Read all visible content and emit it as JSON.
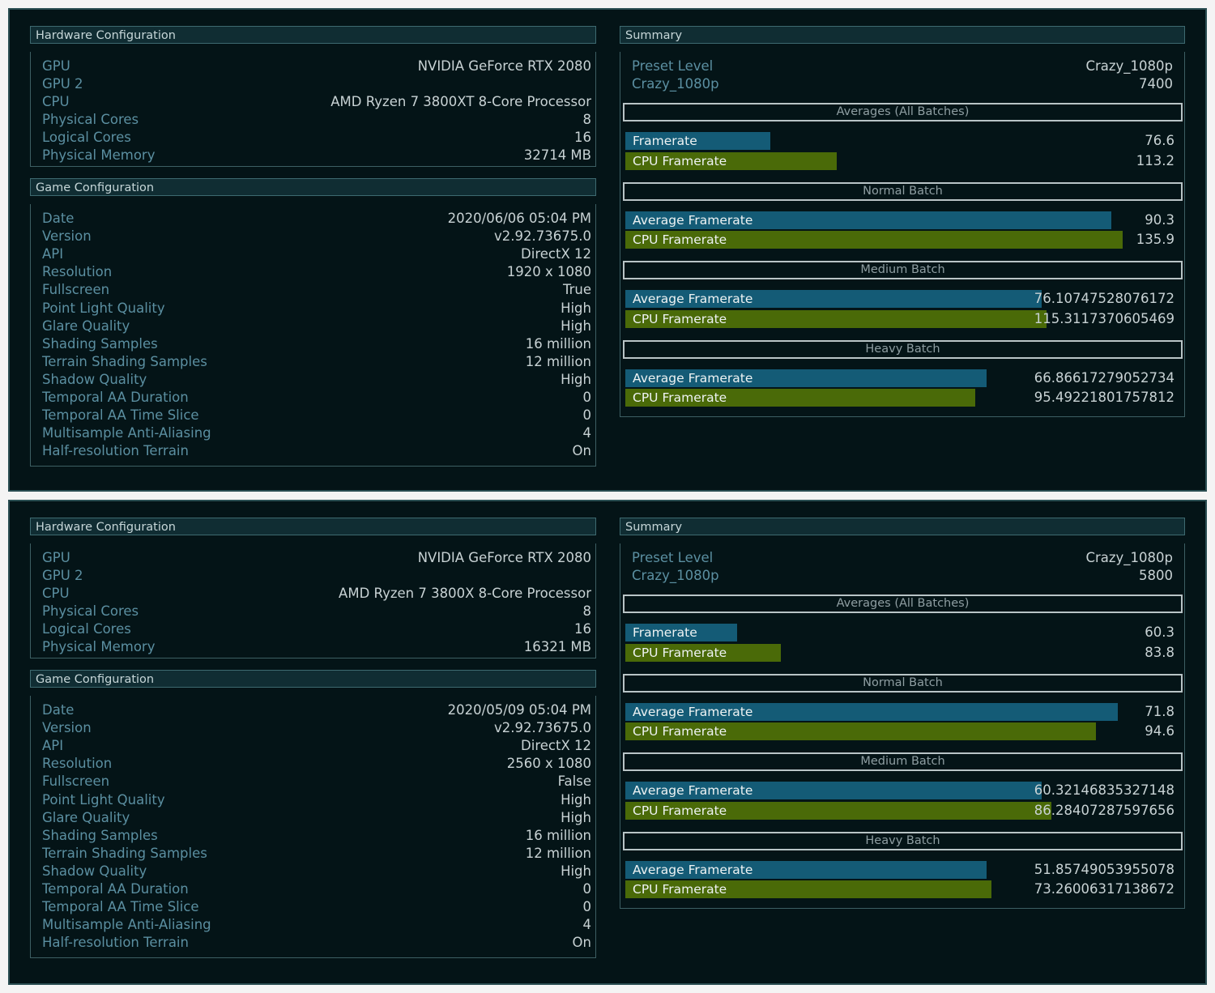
{
  "panels": [
    {
      "hardware": {
        "title": "Hardware Configuration",
        "rows": [
          {
            "label": "GPU",
            "value": "NVIDIA GeForce RTX 2080"
          },
          {
            "label": "GPU 2",
            "value": ""
          },
          {
            "label": "CPU",
            "value": "AMD Ryzen 7 3800XT 8-Core Processor"
          },
          {
            "label": "Physical Cores",
            "value": "8"
          },
          {
            "label": "Logical Cores",
            "value": "16"
          },
          {
            "label": "Physical Memory",
            "value": "32714 MB"
          }
        ]
      },
      "game": {
        "title": "Game Configuration",
        "rows": [
          {
            "label": "Date",
            "value": "2020/06/06 05:04 PM"
          },
          {
            "label": "Version",
            "value": "v2.92.73675.0"
          },
          {
            "label": "API",
            "value": "DirectX 12"
          },
          {
            "label": "Resolution",
            "value": "1920 x 1080"
          },
          {
            "label": "Fullscreen",
            "value": "True"
          },
          {
            "label": "Point Light Quality",
            "value": "High"
          },
          {
            "label": "Glare Quality",
            "value": "High"
          },
          {
            "label": "Shading Samples",
            "value": "16 million"
          },
          {
            "label": "Terrain Shading Samples",
            "value": "12 million"
          },
          {
            "label": "Shadow Quality",
            "value": "High"
          },
          {
            "label": "Temporal AA Duration",
            "value": "0"
          },
          {
            "label": "Temporal AA Time Slice",
            "value": "0"
          },
          {
            "label": "Multisample Anti-Aliasing",
            "value": "4"
          },
          {
            "label": "Half-resolution Terrain",
            "value": "On"
          }
        ]
      },
      "summary": {
        "title": "Summary",
        "rows": [
          {
            "label": "Preset Level",
            "value": "Crazy_1080p"
          },
          {
            "label": "Crazy_1080p",
            "value": "7400"
          }
        ],
        "sections": [
          {
            "title": "Averages (All Batches)",
            "bars": [
              {
                "label": "Framerate",
                "value": "76.6",
                "fill": 0.264,
                "color": "#145b76"
              },
              {
                "label": "CPU Framerate",
                "value": "113.2",
                "fill": 0.385,
                "color": "#4a6a08"
              }
            ]
          },
          {
            "title": "Normal Batch",
            "bars": [
              {
                "label": "Average Framerate",
                "value": "90.3",
                "fill": 0.885,
                "color": "#145b76"
              },
              {
                "label": "CPU Framerate",
                "value": "135.9",
                "fill": 0.906,
                "color": "#4a6a08"
              }
            ]
          },
          {
            "title": "Medium Batch",
            "bars": [
              {
                "label": "Average Framerate",
                "value": "76.10747528076172",
                "fill": 0.758,
                "color": "#145b76"
              },
              {
                "label": "CPU Framerate",
                "value": "115.3117370605469",
                "fill": 0.767,
                "color": "#4a6a08"
              }
            ]
          },
          {
            "title": "Heavy Batch",
            "bars": [
              {
                "label": "Average Framerate",
                "value": "66.86617279052734",
                "fill": 0.658,
                "color": "#145b76"
              },
              {
                "label": "CPU Framerate",
                "value": "95.49221801757812",
                "fill": 0.637,
                "color": "#4a6a08"
              }
            ]
          }
        ]
      }
    },
    {
      "hardware": {
        "title": "Hardware Configuration",
        "rows": [
          {
            "label": "GPU",
            "value": "NVIDIA GeForce RTX 2080"
          },
          {
            "label": "GPU 2",
            "value": ""
          },
          {
            "label": "CPU",
            "value": "AMD Ryzen 7 3800X 8-Core Processor"
          },
          {
            "label": "Physical Cores",
            "value": "8"
          },
          {
            "label": "Logical Cores",
            "value": "16"
          },
          {
            "label": "Physical Memory",
            "value": "16321 MB"
          }
        ]
      },
      "game": {
        "title": "Game Configuration",
        "rows": [
          {
            "label": "Date",
            "value": "2020/05/09 05:04 PM"
          },
          {
            "label": "Version",
            "value": "v2.92.73675.0"
          },
          {
            "label": "API",
            "value": "DirectX 12"
          },
          {
            "label": "Resolution",
            "value": "2560 x 1080"
          },
          {
            "label": "Fullscreen",
            "value": "False"
          },
          {
            "label": "Point Light Quality",
            "value": "High"
          },
          {
            "label": "Glare Quality",
            "value": "High"
          },
          {
            "label": "Shading Samples",
            "value": "16 million"
          },
          {
            "label": "Terrain Shading Samples",
            "value": "12 million"
          },
          {
            "label": "Shadow Quality",
            "value": "High"
          },
          {
            "label": "Temporal AA Duration",
            "value": "0"
          },
          {
            "label": "Temporal AA Time Slice",
            "value": "0"
          },
          {
            "label": "Multisample Anti-Aliasing",
            "value": "4"
          },
          {
            "label": "Half-resolution Terrain",
            "value": "On"
          }
        ]
      },
      "summary": {
        "title": "Summary",
        "rows": [
          {
            "label": "Preset Level",
            "value": "Crazy_1080p"
          },
          {
            "label": "Crazy_1080p",
            "value": "5800"
          }
        ],
        "sections": [
          {
            "title": "Averages (All Batches)",
            "bars": [
              {
                "label": "Framerate",
                "value": "60.3",
                "fill": 0.204,
                "color": "#145b76"
              },
              {
                "label": "CPU Framerate",
                "value": "83.8",
                "fill": 0.283,
                "color": "#4a6a08"
              }
            ]
          },
          {
            "title": "Normal Batch",
            "bars": [
              {
                "label": "Average Framerate",
                "value": "71.8",
                "fill": 0.897,
                "color": "#145b76"
              },
              {
                "label": "CPU Framerate",
                "value": "94.6",
                "fill": 0.857,
                "color": "#4a6a08"
              }
            ]
          },
          {
            "title": "Medium Batch",
            "bars": [
              {
                "label": "Average Framerate",
                "value": "60.32146835327148",
                "fill": 0.758,
                "color": "#145b76"
              },
              {
                "label": "CPU Framerate",
                "value": "86.28407287597656",
                "fill": 0.776,
                "color": "#4a6a08"
              }
            ]
          },
          {
            "title": "Heavy Batch",
            "bars": [
              {
                "label": "Average Framerate",
                "value": "51.85749053955078",
                "fill": 0.658,
                "color": "#145b76"
              },
              {
                "label": "CPU Framerate",
                "value": "73.26006317138672",
                "fill": 0.667,
                "color": "#4a6a08"
              }
            ]
          }
        ]
      }
    }
  ]
}
